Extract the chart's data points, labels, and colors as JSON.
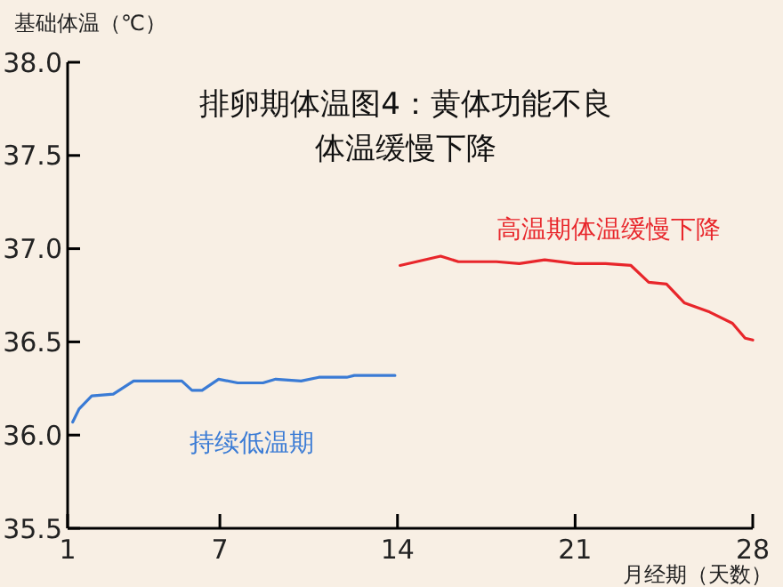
{
  "chart_data": {
    "type": "line",
    "title": "排卵期体温图4：黄体功能不良体温缓慢下降",
    "xlabel": "月经期（天数）",
    "ylabel": "基础体温（℃）",
    "xlim": [
      1,
      28
    ],
    "xticks": [
      1,
      7,
      14,
      21,
      28
    ],
    "ylim": [
      35.5,
      38.0
    ],
    "yticks": [
      {
        "value": 35.5,
        "label": "35.5"
      },
      {
        "value": 36.0,
        "label": "36.0"
      },
      {
        "value": 36.5,
        "label": "36.5"
      },
      {
        "value": 37.0,
        "label": "37.0"
      },
      {
        "value": 37.5,
        "label": "37.5"
      },
      {
        "value": 38.0,
        "label": "38.0"
      }
    ],
    "grid": false,
    "marker": "none",
    "line_style": "solid",
    "series": [
      {
        "name": "持续低温期",
        "color": "#3a7bd5",
        "x": [
          1.2,
          1.45,
          1.95,
          2.8,
          3.6,
          5.5,
          5.9,
          6.3,
          6.95,
          7.7,
          8.7,
          9.2,
          10.2,
          10.9,
          12.0,
          12.3,
          13.9
        ],
        "values": [
          36.07,
          36.14,
          36.21,
          36.22,
          36.29,
          36.29,
          36.24,
          36.24,
          36.3,
          36.28,
          36.28,
          36.3,
          36.29,
          36.31,
          36.31,
          36.32,
          36.32
        ]
      },
      {
        "name": "高温期体温缓慢下降",
        "color": "#e8262b",
        "x": [
          14.1,
          15.7,
          16.4,
          17.9,
          18.8,
          19.8,
          21.0,
          22.2,
          23.2,
          23.9,
          24.6,
          25.3,
          26.3,
          27.2,
          27.7,
          28.0
        ],
        "values": [
          36.91,
          36.96,
          36.93,
          36.93,
          36.92,
          36.94,
          36.92,
          36.92,
          36.91,
          36.82,
          36.81,
          36.71,
          36.66,
          36.6,
          36.52,
          36.51
        ]
      }
    ]
  }
}
